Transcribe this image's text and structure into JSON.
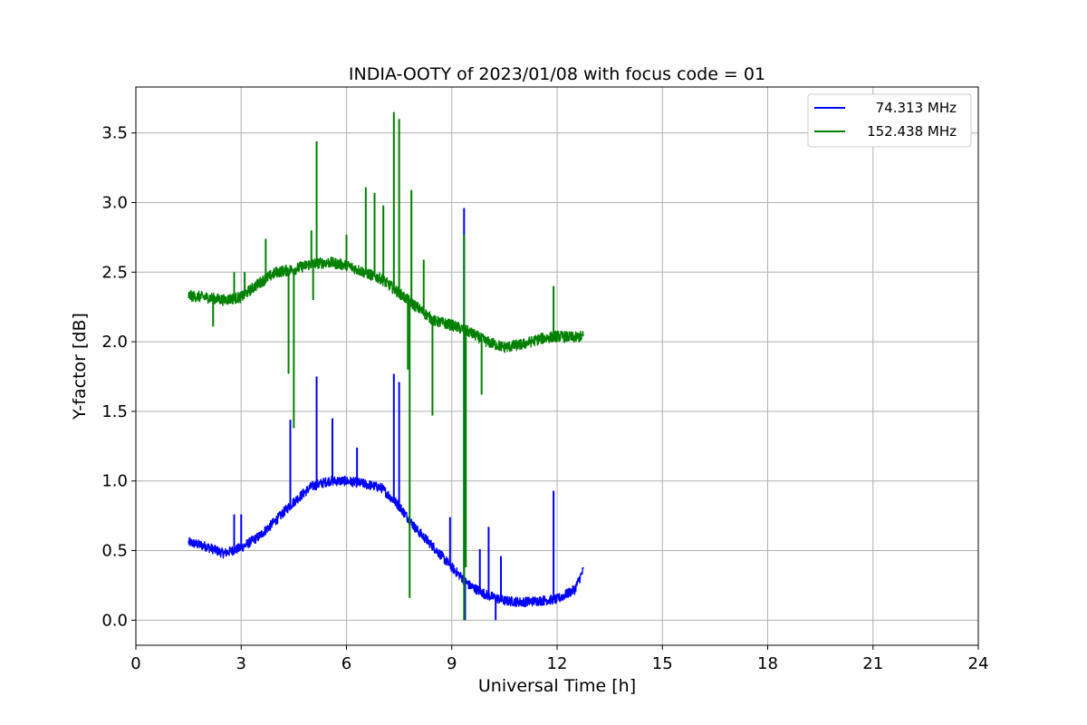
{
  "chart_data": {
    "type": "line",
    "title": "INDIA-OOTY of 2023/01/08 with focus code = 01",
    "xlabel": "Universal Time [h]",
    "ylabel": "Y-factor [dB]",
    "xlim": [
      0,
      24
    ],
    "ylim": [
      -0.18,
      3.83
    ],
    "xticks": [
      "0",
      "3",
      "6",
      "9",
      "12",
      "15",
      "18",
      "21",
      "24"
    ],
    "yticks": [
      "0.0",
      "0.5",
      "1.0",
      "1.5",
      "2.0",
      "2.5",
      "3.0",
      "3.5"
    ],
    "grid": true,
    "legend_position": "top-right",
    "series": [
      {
        "name": "74.313 MHz",
        "color": "#0000ff",
        "x": [
          1.5,
          2.0,
          2.5,
          3.0,
          3.5,
          4.0,
          4.5,
          5.0,
          5.5,
          6.0,
          6.5,
          7.0,
          7.5,
          8.0,
          8.5,
          9.0,
          9.5,
          10.0,
          10.5,
          11.0,
          11.5,
          12.0,
          12.5,
          12.75
        ],
        "y": [
          0.56,
          0.53,
          0.48,
          0.52,
          0.6,
          0.72,
          0.85,
          0.96,
          1.0,
          1.0,
          0.98,
          0.95,
          0.82,
          0.65,
          0.52,
          0.38,
          0.25,
          0.18,
          0.14,
          0.13,
          0.14,
          0.15,
          0.22,
          0.36
        ],
        "noise": 0.035,
        "spikes": [
          [
            2.8,
            0.76
          ],
          [
            3.0,
            0.76
          ],
          [
            4.4,
            1.44
          ],
          [
            5.15,
            1.75
          ],
          [
            5.6,
            1.45
          ],
          [
            6.3,
            1.24
          ],
          [
            7.35,
            1.77
          ],
          [
            7.5,
            1.71
          ],
          [
            8.95,
            0.74
          ],
          [
            9.35,
            2.96
          ],
          [
            9.8,
            0.51
          ],
          [
            10.05,
            0.67
          ],
          [
            10.4,
            0.46
          ],
          [
            11.9,
            0.93
          ]
        ],
        "dips": [
          [
            9.38,
            0.0
          ],
          [
            10.25,
            0.0
          ]
        ]
      },
      {
        "name": "152.438 MHz",
        "color": "#008000",
        "x": [
          1.5,
          2.0,
          2.5,
          3.0,
          3.5,
          4.0,
          4.5,
          5.0,
          5.5,
          6.0,
          6.5,
          7.0,
          7.5,
          8.0,
          8.5,
          9.0,
          9.5,
          10.0,
          10.5,
          11.0,
          11.5,
          12.0,
          12.5,
          12.75
        ],
        "y": [
          2.33,
          2.32,
          2.3,
          2.32,
          2.42,
          2.5,
          2.52,
          2.56,
          2.57,
          2.55,
          2.5,
          2.45,
          2.35,
          2.25,
          2.15,
          2.12,
          2.07,
          2.0,
          1.96,
          1.98,
          2.02,
          2.04,
          2.03,
          2.04
        ],
        "noise": 0.04,
        "spikes": [
          [
            2.8,
            2.5
          ],
          [
            3.1,
            2.5
          ],
          [
            3.7,
            2.74
          ],
          [
            5.0,
            2.8
          ],
          [
            5.15,
            3.44
          ],
          [
            6.0,
            2.77
          ],
          [
            6.55,
            3.11
          ],
          [
            6.8,
            3.07
          ],
          [
            7.05,
            2.98
          ],
          [
            7.35,
            3.65
          ],
          [
            7.5,
            3.6
          ],
          [
            7.85,
            3.09
          ],
          [
            8.2,
            2.59
          ],
          [
            9.35,
            2.77
          ],
          [
            11.9,
            2.4
          ]
        ],
        "dips": [
          [
            2.2,
            2.11
          ],
          [
            4.35,
            1.77
          ],
          [
            4.5,
            1.38
          ],
          [
            5.05,
            2.3
          ],
          [
            7.75,
            1.8
          ],
          [
            7.8,
            0.16
          ],
          [
            8.45,
            1.47
          ],
          [
            9.35,
            0.0
          ],
          [
            9.4,
            0.38
          ],
          [
            9.85,
            1.62
          ]
        ]
      }
    ]
  }
}
